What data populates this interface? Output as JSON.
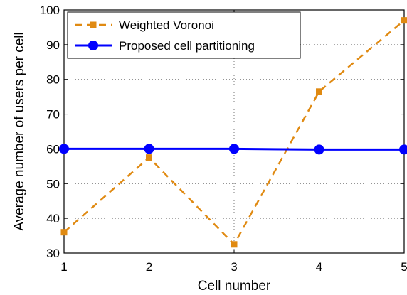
{
  "chart_data": {
    "type": "line",
    "xlabel": "Cell number",
    "ylabel": "Average number of users per cell",
    "xlim": [
      1,
      5
    ],
    "ylim": [
      30,
      100
    ],
    "x_ticks": [
      1,
      2,
      3,
      4,
      5
    ],
    "y_ticks": [
      30,
      40,
      50,
      60,
      70,
      80,
      90,
      100
    ],
    "grid": true,
    "legend_position": "top-left",
    "series": [
      {
        "name": "Weighted Voronoi",
        "x": [
          1,
          2,
          3,
          4,
          5
        ],
        "values": [
          36,
          57.5,
          32.5,
          76.5,
          97
        ],
        "color": "#e08a12",
        "line_style": "dashed",
        "marker": "square"
      },
      {
        "name": "Proposed cell partitioning",
        "x": [
          1,
          2,
          3,
          4,
          5
        ],
        "values": [
          60,
          60,
          60,
          59.8,
          59.8
        ],
        "color": "#0000ff",
        "line_style": "solid",
        "marker": "circle"
      }
    ]
  }
}
